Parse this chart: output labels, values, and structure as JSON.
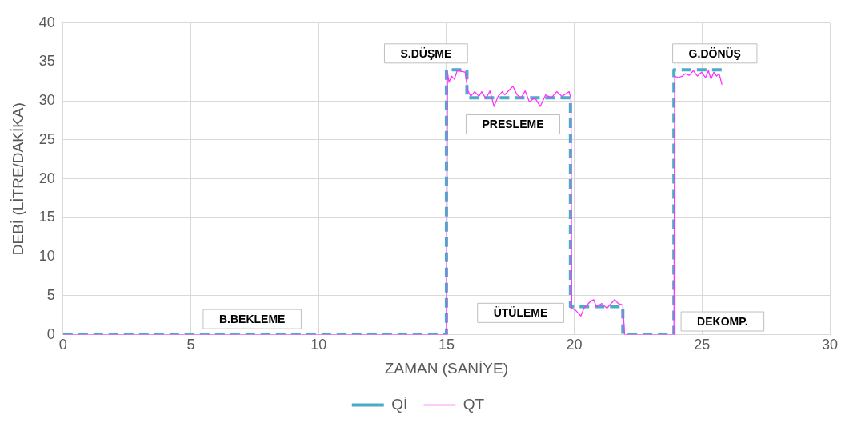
{
  "chart_data": {
    "type": "line",
    "xlabel": "ZAMAN (SANİYE)",
    "ylabel": "DEBİ (LİTRE/DAKİKA)",
    "xlim": [
      0,
      30
    ],
    "xticks": [
      0,
      5,
      10,
      15,
      20,
      25,
      30
    ],
    "ylim": [
      0,
      40
    ],
    "yticks": [
      0,
      5,
      10,
      15,
      20,
      25,
      30,
      35,
      40
    ],
    "grid": true,
    "legend": "bottom",
    "marker": "none",
    "series": [
      {
        "name": "Qİ",
        "color": "#4bacc6",
        "line_style": "dashed",
        "x": [
          0,
          15,
          15,
          15.8,
          15.8,
          19.85,
          19.85,
          21.9,
          21.9,
          23.9,
          23.9,
          25.8
        ],
        "values": [
          0,
          0,
          34,
          34,
          30.4,
          30.4,
          3.6,
          3.6,
          0,
          0,
          34,
          34
        ]
      },
      {
        "name": "QT",
        "color": "#ff33ff",
        "line_style": "solid",
        "x": [
          0,
          15,
          15.04,
          15.1,
          15.2,
          15.31,
          15.42,
          15.73,
          15.84,
          15.95,
          16.1,
          16.27,
          16.38,
          16.54,
          16.7,
          16.86,
          17.02,
          17.18,
          17.28,
          17.6,
          17.76,
          17.92,
          18.08,
          18.24,
          18.46,
          18.67,
          18.88,
          19.1,
          19.31,
          19.52,
          19.8,
          19.87,
          19.9,
          20.06,
          20.26,
          20.38,
          20.64,
          20.76,
          20.86,
          21.08,
          21.28,
          21.58,
          21.72,
          21.9,
          21.97,
          23.9,
          23.93,
          24.07,
          24.23,
          24.34,
          24.5,
          24.66,
          24.82,
          24.98,
          25.14,
          25.25,
          25.35,
          25.46,
          25.57,
          25.67,
          25.78
        ],
        "values": [
          0,
          0,
          33.7,
          32.4,
          33.2,
          32.8,
          33.9,
          33.7,
          31.3,
          30.6,
          31.2,
          30.6,
          31.2,
          30.3,
          31.3,
          29.3,
          30.6,
          31.2,
          30.8,
          31.9,
          30.8,
          30.4,
          31.3,
          29.9,
          30.4,
          29.3,
          30.8,
          30.4,
          31.2,
          30.6,
          31.2,
          30.3,
          3.4,
          3.1,
          2.4,
          3.4,
          4.3,
          4.5,
          3.6,
          4.0,
          3.4,
          4.5,
          4.0,
          3.8,
          0,
          0,
          33.2,
          33.0,
          33.2,
          33.5,
          33.3,
          33.9,
          33.2,
          33.7,
          33.0,
          33.9,
          32.8,
          33.7,
          33.2,
          33.5,
          32.1
        ]
      }
    ],
    "annotations": [
      "S.DÜŞME",
      "B.BEKLEME",
      "PRESLEME",
      "ÜTÜLEME",
      "DEKOMP.",
      "G.DÖNÜŞ"
    ]
  }
}
